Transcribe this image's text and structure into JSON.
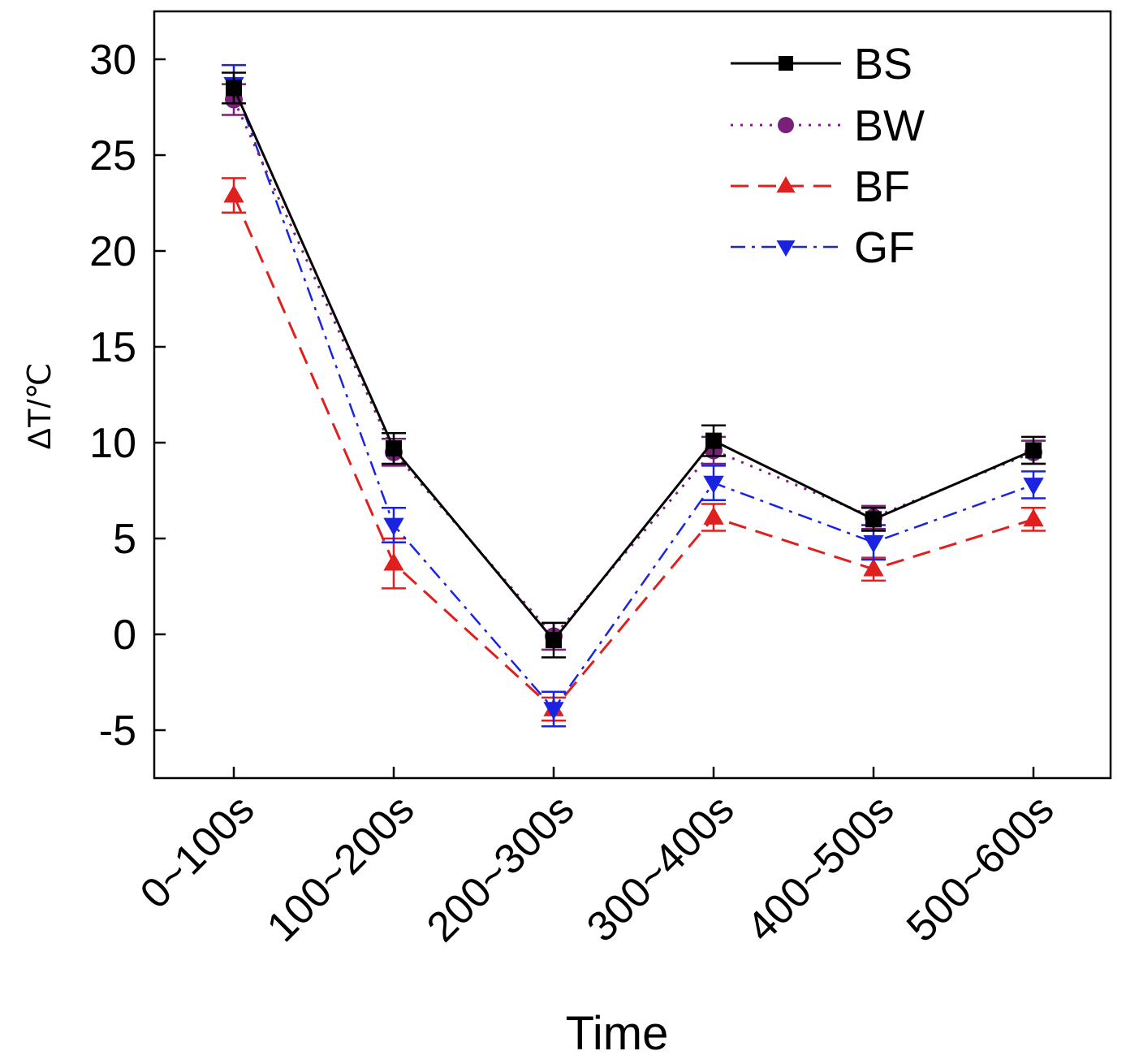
{
  "chart_data": {
    "type": "line",
    "title": "",
    "xlabel": "Time",
    "ylabel": "ΔT/℃",
    "categories": [
      "0~100s",
      "100~200s",
      "200~300s",
      "300~400s",
      "400~500s",
      "500~600s"
    ],
    "ylim": [
      -7.5,
      32.5
    ],
    "yticks": [
      -5,
      0,
      5,
      10,
      15,
      20,
      25,
      30
    ],
    "grid": false,
    "legend_position": "top-right",
    "series": [
      {
        "name": "BS",
        "color": "#000000",
        "line_style": "solid",
        "marker": "square",
        "values": [
          28.5,
          9.7,
          -0.3,
          10.1,
          6.0,
          9.6
        ],
        "errors": [
          0.8,
          0.8,
          0.9,
          0.8,
          0.6,
          0.7
        ]
      },
      {
        "name": "BW",
        "color": "#7a1f7a",
        "line_style": "dotted",
        "marker": "circle",
        "values": [
          27.9,
          9.5,
          -0.1,
          9.6,
          6.1,
          9.5
        ],
        "errors": [
          0.8,
          0.7,
          0.7,
          0.7,
          0.6,
          0.6
        ]
      },
      {
        "name": "BF",
        "color": "#e0201e",
        "line_style": "dashed",
        "marker": "triangle-up",
        "values": [
          22.9,
          3.7,
          -3.9,
          6.1,
          3.4,
          6.0
        ],
        "errors": [
          0.9,
          1.3,
          0.6,
          0.7,
          0.6,
          0.6
        ]
      },
      {
        "name": "GF",
        "color": "#1a24e0",
        "line_style": "dashdot",
        "marker": "triangle-down",
        "values": [
          28.7,
          5.7,
          -3.9,
          7.9,
          4.8,
          7.8
        ],
        "errors": [
          1.0,
          0.9,
          0.9,
          0.9,
          0.9,
          0.7
        ]
      }
    ]
  }
}
